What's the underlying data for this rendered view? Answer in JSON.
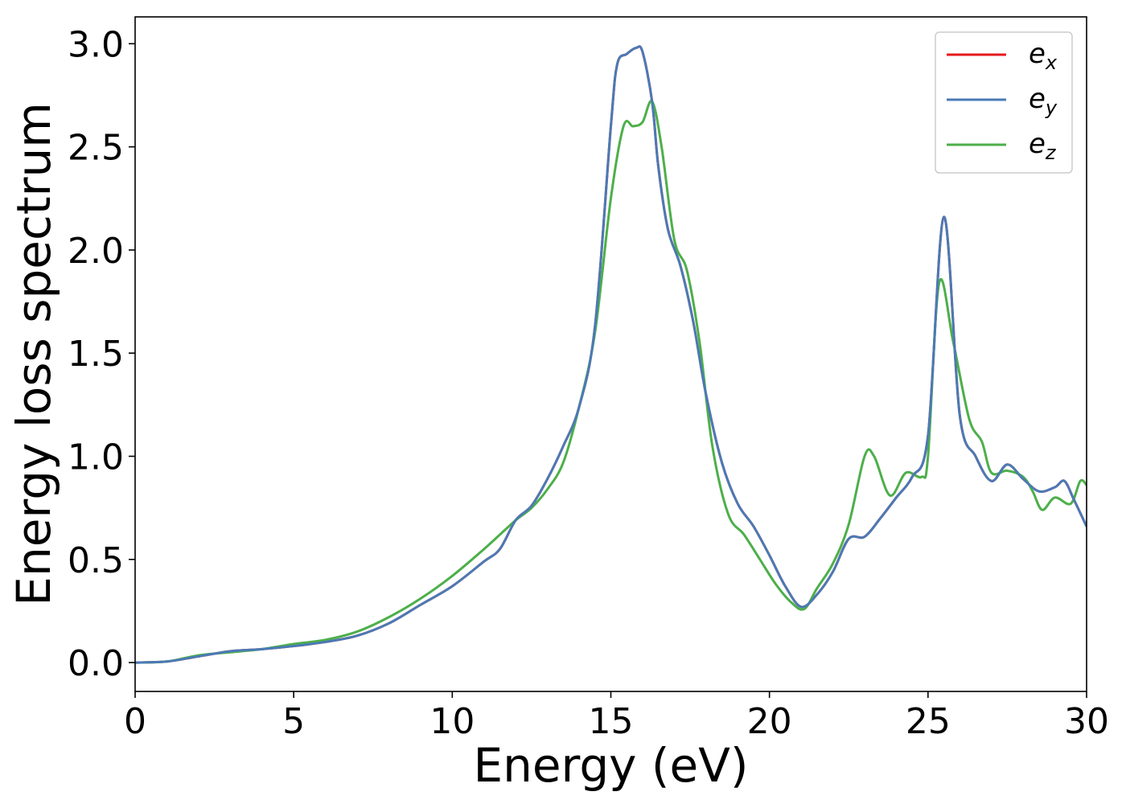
{
  "chart_data": {
    "type": "line",
    "xlabel": "Energy (eV)",
    "ylabel": "Energy loss spectrum",
    "xlim": [
      0,
      30
    ],
    "ylim": [
      -0.14,
      3.13
    ],
    "x_ticks": [
      "0",
      "5",
      "10",
      "15",
      "20",
      "25",
      "30"
    ],
    "y_ticks": [
      "0.0",
      "0.5",
      "1.0",
      "1.5",
      "2.0",
      "2.5",
      "3.0"
    ],
    "grid": false,
    "legend_position": "top-right",
    "series": [
      {
        "name": "e_x",
        "label_main": "e",
        "label_sub": "x",
        "color": "#e41a1c",
        "points": [
          [
            0,
            0
          ],
          [
            1,
            0.005
          ],
          [
            2,
            0.03
          ],
          [
            3,
            0.055
          ],
          [
            4,
            0.065
          ],
          [
            5,
            0.08
          ],
          [
            6,
            0.1
          ],
          [
            7,
            0.13
          ],
          [
            8,
            0.19
          ],
          [
            9,
            0.28
          ],
          [
            10,
            0.37
          ],
          [
            11,
            0.49
          ],
          [
            11.5,
            0.55
          ],
          [
            12,
            0.69
          ],
          [
            12.5,
            0.76
          ],
          [
            13,
            0.89
          ],
          [
            13.5,
            1.05
          ],
          [
            14,
            1.24
          ],
          [
            14.5,
            1.63
          ],
          [
            15,
            2.6
          ],
          [
            15.2,
            2.9
          ],
          [
            15.5,
            2.95
          ],
          [
            15.8,
            2.98
          ],
          [
            16,
            2.96
          ],
          [
            16.3,
            2.72
          ],
          [
            16.5,
            2.4
          ],
          [
            16.8,
            2.1
          ],
          [
            17.2,
            1.92
          ],
          [
            17.6,
            1.65
          ],
          [
            18,
            1.3
          ],
          [
            18.5,
            0.97
          ],
          [
            19,
            0.77
          ],
          [
            19.5,
            0.66
          ],
          [
            20,
            0.52
          ],
          [
            20.5,
            0.37
          ],
          [
            21,
            0.27
          ],
          [
            21.5,
            0.33
          ],
          [
            22,
            0.44
          ],
          [
            22.5,
            0.6
          ],
          [
            23,
            0.61
          ],
          [
            23.5,
            0.7
          ],
          [
            24,
            0.8
          ],
          [
            24.5,
            0.9
          ],
          [
            25,
            1.1
          ],
          [
            25.5,
            2.16
          ],
          [
            26,
            1.2
          ],
          [
            26.5,
            1.0
          ],
          [
            27,
            0.88
          ],
          [
            27.5,
            0.96
          ],
          [
            28,
            0.89
          ],
          [
            28.5,
            0.83
          ],
          [
            29,
            0.85
          ],
          [
            29.3,
            0.88
          ],
          [
            29.6,
            0.79
          ],
          [
            30,
            0.66
          ]
        ]
      },
      {
        "name": "e_y",
        "label_main": "e",
        "label_sub": "y",
        "color": "#4a7ab5",
        "points": [
          [
            0,
            0
          ],
          [
            1,
            0.005
          ],
          [
            2,
            0.03
          ],
          [
            3,
            0.055
          ],
          [
            4,
            0.065
          ],
          [
            5,
            0.08
          ],
          [
            6,
            0.1
          ],
          [
            7,
            0.13
          ],
          [
            8,
            0.19
          ],
          [
            9,
            0.28
          ],
          [
            10,
            0.37
          ],
          [
            11,
            0.49
          ],
          [
            11.5,
            0.55
          ],
          [
            12,
            0.69
          ],
          [
            12.5,
            0.76
          ],
          [
            13,
            0.89
          ],
          [
            13.5,
            1.05
          ],
          [
            14,
            1.24
          ],
          [
            14.5,
            1.63
          ],
          [
            15,
            2.6
          ],
          [
            15.2,
            2.9
          ],
          [
            15.5,
            2.95
          ],
          [
            15.8,
            2.98
          ],
          [
            16,
            2.96
          ],
          [
            16.3,
            2.72
          ],
          [
            16.5,
            2.4
          ],
          [
            16.8,
            2.1
          ],
          [
            17.2,
            1.92
          ],
          [
            17.6,
            1.65
          ],
          [
            18,
            1.3
          ],
          [
            18.5,
            0.97
          ],
          [
            19,
            0.77
          ],
          [
            19.5,
            0.66
          ],
          [
            20,
            0.52
          ],
          [
            20.5,
            0.37
          ],
          [
            21,
            0.27
          ],
          [
            21.5,
            0.33
          ],
          [
            22,
            0.44
          ],
          [
            22.5,
            0.6
          ],
          [
            23,
            0.61
          ],
          [
            23.5,
            0.7
          ],
          [
            24,
            0.8
          ],
          [
            24.5,
            0.9
          ],
          [
            25,
            1.1
          ],
          [
            25.5,
            2.16
          ],
          [
            26,
            1.2
          ],
          [
            26.5,
            1.0
          ],
          [
            27,
            0.88
          ],
          [
            27.5,
            0.96
          ],
          [
            28,
            0.89
          ],
          [
            28.5,
            0.83
          ],
          [
            29,
            0.85
          ],
          [
            29.3,
            0.88
          ],
          [
            29.6,
            0.79
          ],
          [
            30,
            0.66
          ]
        ]
      },
      {
        "name": "e_z",
        "label_main": "e",
        "label_sub": "z",
        "color": "#4daf4a",
        "points": [
          [
            0,
            0
          ],
          [
            1,
            0.005
          ],
          [
            2,
            0.035
          ],
          [
            3,
            0.05
          ],
          [
            4,
            0.065
          ],
          [
            5,
            0.09
          ],
          [
            6,
            0.11
          ],
          [
            7,
            0.15
          ],
          [
            8,
            0.22
          ],
          [
            9,
            0.31
          ],
          [
            10,
            0.42
          ],
          [
            11,
            0.55
          ],
          [
            11.5,
            0.62
          ],
          [
            12,
            0.69
          ],
          [
            12.5,
            0.75
          ],
          [
            13,
            0.84
          ],
          [
            13.5,
            0.97
          ],
          [
            14,
            1.24
          ],
          [
            14.5,
            1.6
          ],
          [
            15,
            2.25
          ],
          [
            15.4,
            2.6
          ],
          [
            15.7,
            2.6
          ],
          [
            16,
            2.62
          ],
          [
            16.3,
            2.72
          ],
          [
            16.6,
            2.5
          ],
          [
            17,
            2.05
          ],
          [
            17.4,
            1.9
          ],
          [
            17.8,
            1.55
          ],
          [
            18.2,
            1.05
          ],
          [
            18.7,
            0.72
          ],
          [
            19.2,
            0.62
          ],
          [
            19.7,
            0.5
          ],
          [
            20.2,
            0.38
          ],
          [
            20.7,
            0.29
          ],
          [
            21.1,
            0.26
          ],
          [
            21.5,
            0.36
          ],
          [
            22,
            0.48
          ],
          [
            22.5,
            0.67
          ],
          [
            23,
            1.0
          ],
          [
            23.3,
            1.0
          ],
          [
            23.8,
            0.81
          ],
          [
            24.3,
            0.92
          ],
          [
            24.8,
            0.9
          ],
          [
            25,
            1.0
          ],
          [
            25.35,
            1.84
          ],
          [
            25.8,
            1.55
          ],
          [
            26.3,
            1.18
          ],
          [
            26.7,
            1.07
          ],
          [
            27,
            0.92
          ],
          [
            27.5,
            0.93
          ],
          [
            28,
            0.9
          ],
          [
            28.3,
            0.83
          ],
          [
            28.6,
            0.74
          ],
          [
            29,
            0.8
          ],
          [
            29.5,
            0.77
          ],
          [
            29.8,
            0.88
          ],
          [
            30,
            0.86
          ]
        ]
      }
    ]
  }
}
